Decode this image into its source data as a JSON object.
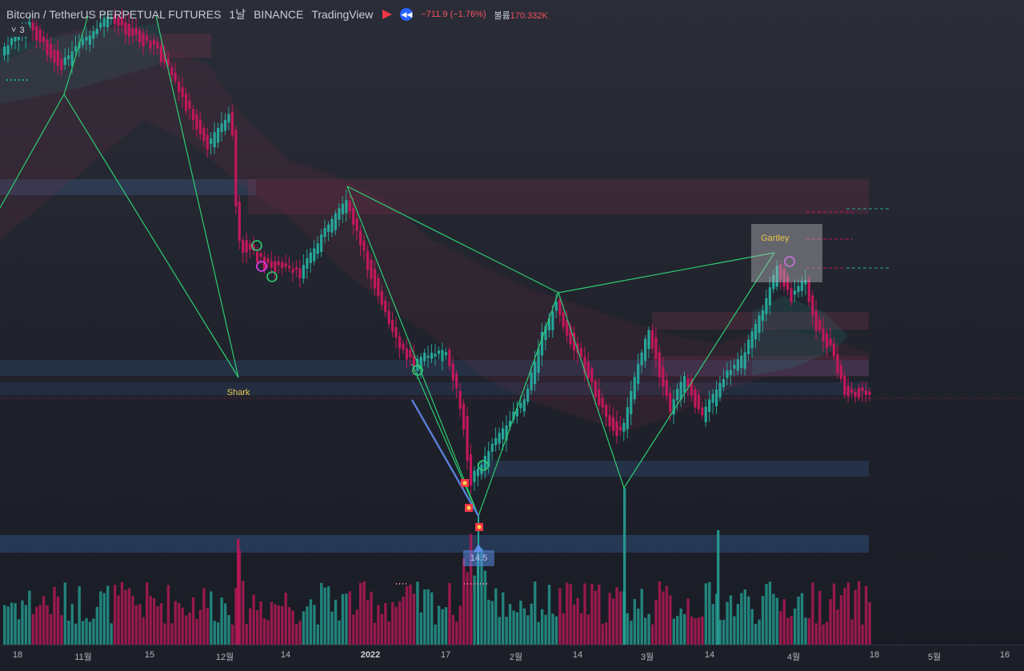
{
  "header": {
    "symbol": "Bitcoin / TetherUS PERPETUAL FUTURES",
    "interval": "1날",
    "exchange": "BINANCE",
    "platform": "TradingView",
    "change": "−711.9 (−1.76%)",
    "volume_label": "볼륨",
    "volume_value": "170.332K",
    "collapse_count": "3"
  },
  "colors": {
    "up": "#26a69a",
    "down": "#c2185b",
    "pattern_line": "#2ecc71",
    "accent": "#2962ff",
    "pattern_label": "#e5c74b"
  },
  "icons": {
    "flag": "red-flag-icon",
    "rewind": "rewind-icon",
    "collapse": "chevron-down-icon"
  },
  "annotations": {
    "shark": "Shark",
    "gartley": "Gartley",
    "volume_tag": "14.5"
  },
  "chart_data": {
    "type": "candlestick",
    "title": "",
    "x_tick_labels": [
      "18",
      "11월",
      "15",
      "12월",
      "14",
      "2022",
      "17",
      "2월",
      "14",
      "3월",
      "14",
      "4월",
      "18",
      "5월",
      "16"
    ],
    "y_range_note": "price axis not shown",
    "series_note": "daily candles with volume histogram",
    "pattern_names": [
      "Shark",
      "Gartley"
    ]
  }
}
